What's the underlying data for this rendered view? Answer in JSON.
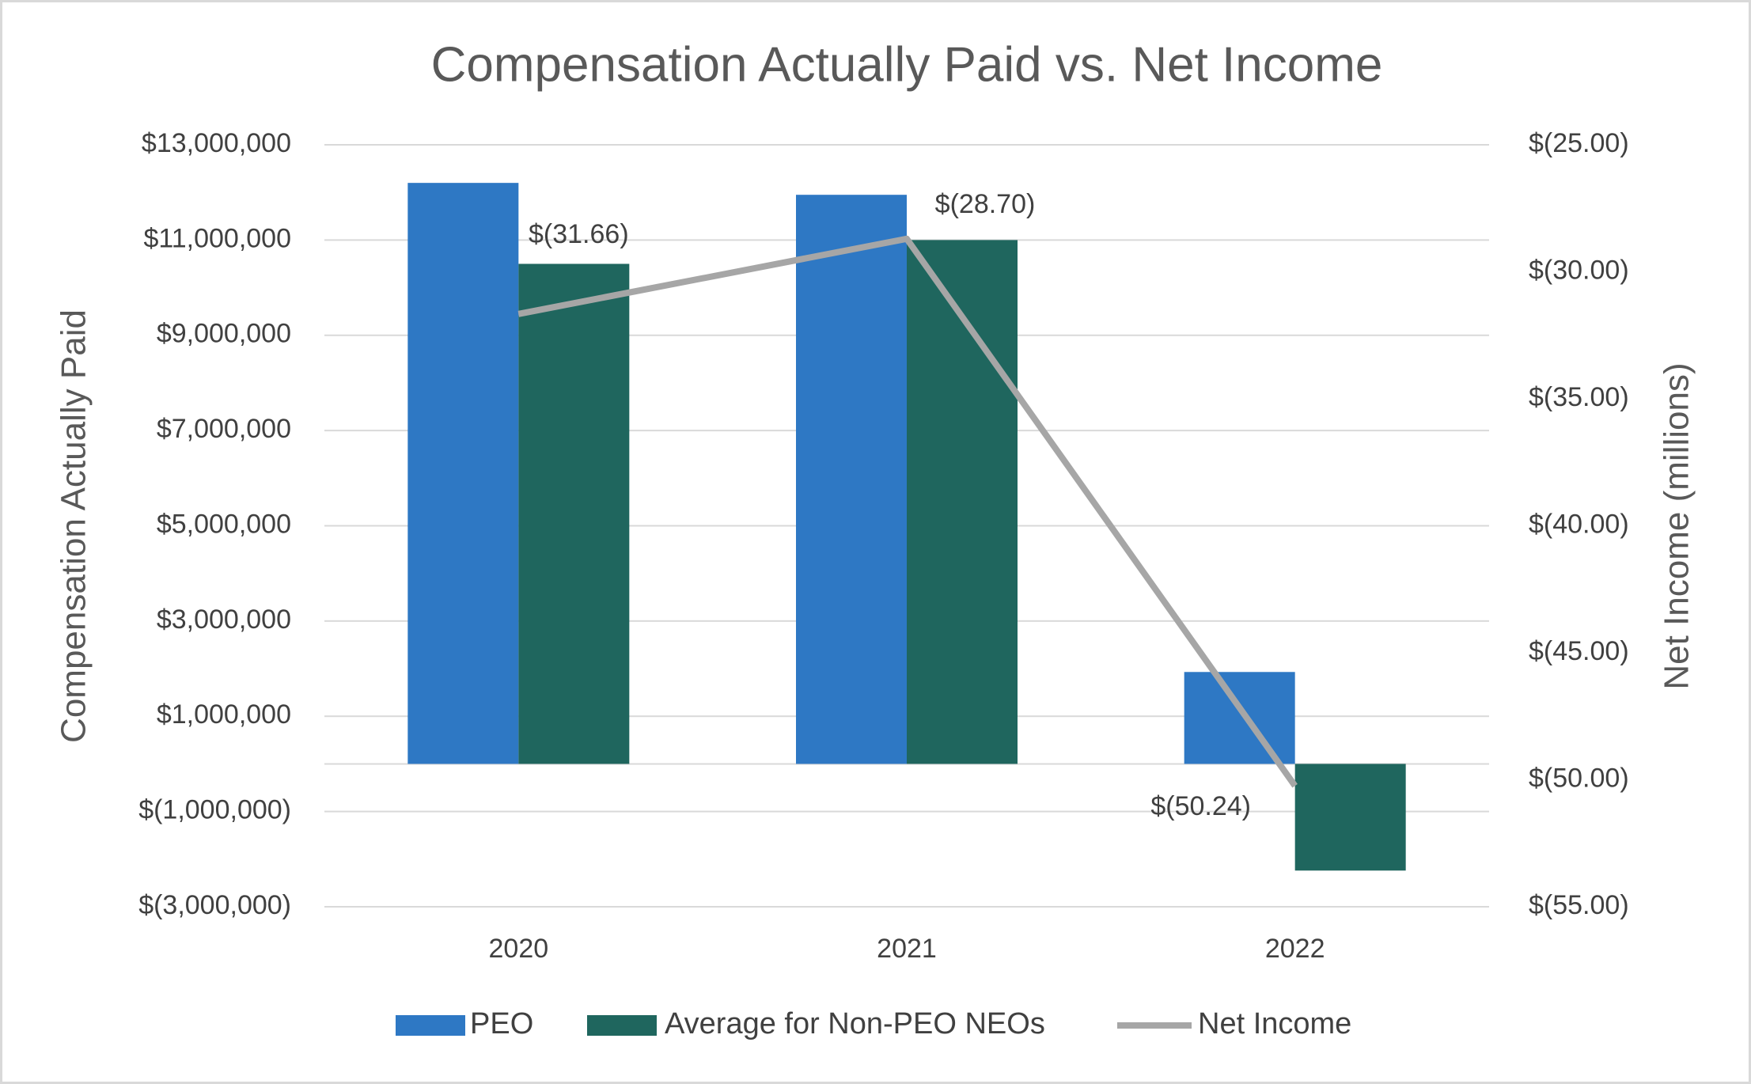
{
  "chart_data": {
    "type": "bar",
    "title": "Compensation Actually Paid vs. Net Income",
    "y_label": "Compensation Actually Paid",
    "y2_label": "Net Income (millions)",
    "categories": [
      "2020",
      "2021",
      "2022"
    ],
    "series": [
      {
        "name": "PEO",
        "type": "bar",
        "color": "#2e78c4",
        "values": [
          12200000,
          11950000,
          1930000
        ]
      },
      {
        "name": "Average for Non-PEO NEOs",
        "type": "bar",
        "color": "#1f665e",
        "values": [
          10500000,
          11000000,
          -2240000
        ]
      },
      {
        "name": "Net Income",
        "type": "line",
        "axis": "y2",
        "color": "#a6a6a6",
        "values": [
          -31.66,
          -28.7,
          -50.24
        ],
        "value_labels": [
          "$(31.66)",
          "$(28.70)",
          "$(50.24)"
        ]
      }
    ],
    "ylim": [
      -3000000,
      13000000
    ],
    "yticks": [
      {
        "value": -3000000,
        "label": "$(3,000,000)"
      },
      {
        "value": -1000000,
        "label": "$(1,000,000)"
      },
      {
        "value": 1000000,
        "label": "$1,000,000"
      },
      {
        "value": 3000000,
        "label": "$3,000,000"
      },
      {
        "value": 5000000,
        "label": "$5,000,000"
      },
      {
        "value": 7000000,
        "label": "$7,000,000"
      },
      {
        "value": 9000000,
        "label": "$9,000,000"
      },
      {
        "value": 11000000,
        "label": "$11,000,000"
      },
      {
        "value": 13000000,
        "label": "$13,000,000"
      }
    ],
    "y2lim": [
      -55,
      -25
    ],
    "y2ticks": [
      {
        "value": -55,
        "label": "$(55.00)"
      },
      {
        "value": -50,
        "label": "$(50.00)"
      },
      {
        "value": -45,
        "label": "$(45.00)"
      },
      {
        "value": -40,
        "label": "$(40.00)"
      },
      {
        "value": -35,
        "label": "$(35.00)"
      },
      {
        "value": -30,
        "label": "$(30.00)"
      },
      {
        "value": -25,
        "label": "$(25.00)"
      }
    ],
    "grid": true,
    "legend": "bottom"
  }
}
